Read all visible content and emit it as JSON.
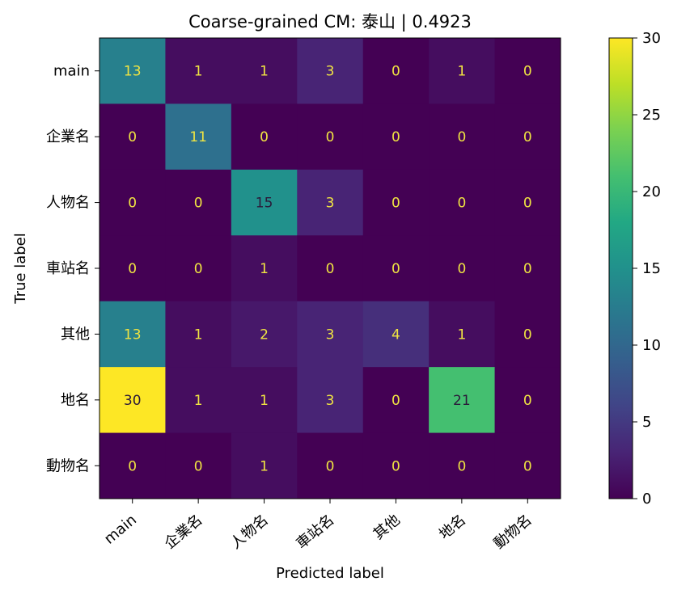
{
  "chart_data": {
    "type": "heatmap",
    "title": "Coarse-grained CM: 泰山 | 0.4923",
    "xlabel": "Predicted label",
    "ylabel": "True label",
    "x_categories": [
      "main",
      "企業名",
      "人物名",
      "車站名",
      "其他",
      "地名",
      "動物名"
    ],
    "y_categories": [
      "main",
      "企業名",
      "人物名",
      "車站名",
      "其他",
      "地名",
      "動物名"
    ],
    "values": [
      [
        13,
        1,
        1,
        3,
        0,
        1,
        0
      ],
      [
        0,
        11,
        0,
        0,
        0,
        0,
        0
      ],
      [
        0,
        0,
        15,
        3,
        0,
        0,
        0
      ],
      [
        0,
        0,
        1,
        0,
        0,
        0,
        0
      ],
      [
        13,
        1,
        2,
        3,
        4,
        1,
        0
      ],
      [
        30,
        1,
        1,
        3,
        0,
        21,
        0
      ],
      [
        0,
        0,
        1,
        0,
        0,
        0,
        0
      ]
    ],
    "colormap": "viridis",
    "color_range": [
      0,
      30
    ],
    "colorbar_ticks": [
      0,
      5,
      10,
      15,
      20,
      25,
      30
    ],
    "text_color_light": "#f0e442",
    "text_color_dark": "#2b1a3a"
  }
}
